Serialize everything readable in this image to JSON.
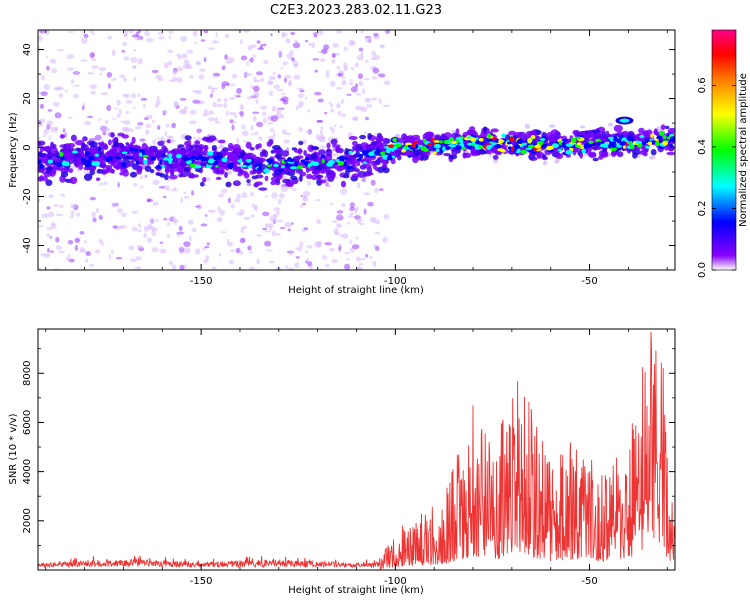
{
  "figure": {
    "title": "C2E3.2023.283.02.11.G23"
  },
  "chart_data": [
    {
      "type": "heatmap",
      "xlabel": "Height of straight line (km)",
      "ylabel": "Frequency (Hz)",
      "xlim": [
        -192,
        -28
      ],
      "ylim": [
        -50,
        48
      ],
      "xticks": [
        -150,
        -100,
        -50
      ],
      "yticks": [
        -40,
        -20,
        0,
        20,
        40
      ],
      "colorbar": {
        "label": "Normalized spectral amplitude",
        "range": [
          0.0,
          0.78
        ],
        "ticks": [
          "0.0",
          "0.2",
          "0.4",
          "0.6"
        ],
        "tick_values": [
          0.0,
          0.2,
          0.4,
          0.6
        ],
        "colors": [
          "#ffffff",
          "#8800ff",
          "#0000ff",
          "#00ffff",
          "#00ff00",
          "#ffff00",
          "#ff8800",
          "#ff0000",
          "#ff0088"
        ]
      },
      "ridge_frequency_hz": [
        {
          "x": -190,
          "y": -6
        },
        {
          "x": -170,
          "y": -4
        },
        {
          "x": -150,
          "y": -5
        },
        {
          "x": -130,
          "y": -7
        },
        {
          "x": -110,
          "y": -5
        },
        {
          "x": -100,
          "y": 0
        },
        {
          "x": -80,
          "y": 2
        },
        {
          "x": -60,
          "y": 1
        },
        {
          "x": -40,
          "y": 2
        },
        {
          "x": -30,
          "y": 3
        }
      ],
      "noise_region_end_x": -102,
      "grid": false
    },
    {
      "type": "line",
      "xlabel": "Height of straight line (km)",
      "ylabel": "SNR (10 * v/v)",
      "xlim": [
        -192,
        -28
      ],
      "ylim": [
        0,
        9800
      ],
      "xticks": [
        -150,
        -100,
        -50
      ],
      "yticks": [
        2000,
        4000,
        6000,
        8000
      ],
      "series_color": "#ee3333",
      "envelope": [
        {
          "x": -192,
          "y": 400
        },
        {
          "x": -170,
          "y": 700
        },
        {
          "x": -150,
          "y": 450
        },
        {
          "x": -130,
          "y": 650
        },
        {
          "x": -110,
          "y": 400
        },
        {
          "x": -104,
          "y": 500
        },
        {
          "x": -98,
          "y": 1900
        },
        {
          "x": -92,
          "y": 2400
        },
        {
          "x": -87,
          "y": 3200
        },
        {
          "x": -80,
          "y": 6700
        },
        {
          "x": -75,
          "y": 5000
        },
        {
          "x": -68,
          "y": 7900
        },
        {
          "x": -60,
          "y": 4300
        },
        {
          "x": -55,
          "y": 5200
        },
        {
          "x": -47,
          "y": 4200
        },
        {
          "x": -40,
          "y": 5500
        },
        {
          "x": -36,
          "y": 8500
        },
        {
          "x": -34,
          "y": 9800
        },
        {
          "x": -31,
          "y": 8200
        },
        {
          "x": -29,
          "y": 3000
        },
        {
          "x": -28,
          "y": 2000
        }
      ],
      "grid": false
    }
  ]
}
